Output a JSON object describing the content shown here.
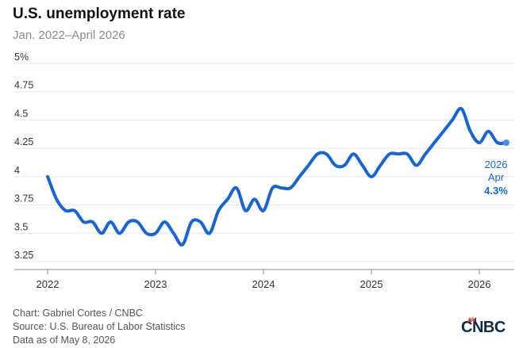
{
  "header": {
    "title": "U.S. unemployment rate",
    "subtitle": "Jan. 2022–April 2026"
  },
  "footer": {
    "credit": "Chart: Gabriel Cortes / CNBC",
    "source": "Source: U.S. Bureau of Labor Statistics",
    "asof": "Data as of May 8, 2026"
  },
  "logo": {
    "text": "CNBC",
    "icon": "cnbc-peacock-logo"
  },
  "colors": {
    "line": "#1565d8",
    "grid": "#e6e6e6",
    "axis": "#888888",
    "label_accent": "#1565d8"
  },
  "chart_data": {
    "type": "line",
    "title": "U.S. unemployment rate",
    "subtitle": "Jan. 2022–April 2026",
    "xlabel": "",
    "ylabel": "",
    "ylim": [
      3.25,
      5
    ],
    "y_ticks": [
      3.25,
      3.5,
      3.75,
      4,
      4.25,
      4.5,
      4.75,
      5
    ],
    "y_tick_labels": [
      "3.25",
      "3.5",
      "3.75",
      "4",
      "4.25",
      "4.5",
      "4.75",
      "5%"
    ],
    "x_tick_labels": [
      "2022",
      "2023",
      "2024",
      "2025",
      "2026"
    ],
    "grid": true,
    "series": [
      {
        "values": [
          {
            "x": "2022-01",
            "y": 4.0
          },
          {
            "x": "2022-02",
            "y": 3.8
          },
          {
            "x": "2022-03",
            "y": 3.7
          },
          {
            "x": "2022-04",
            "y": 3.7
          },
          {
            "x": "2022-05",
            "y": 3.6
          },
          {
            "x": "2022-06",
            "y": 3.6
          },
          {
            "x": "2022-07",
            "y": 3.5
          },
          {
            "x": "2022-08",
            "y": 3.6
          },
          {
            "x": "2022-09",
            "y": 3.5
          },
          {
            "x": "2022-10",
            "y": 3.6
          },
          {
            "x": "2022-11",
            "y": 3.6
          },
          {
            "x": "2022-12",
            "y": 3.5
          },
          {
            "x": "2023-01",
            "y": 3.5
          },
          {
            "x": "2023-02",
            "y": 3.6
          },
          {
            "x": "2023-03",
            "y": 3.5
          },
          {
            "x": "2023-04",
            "y": 3.4
          },
          {
            "x": "2023-05",
            "y": 3.6
          },
          {
            "x": "2023-06",
            "y": 3.6
          },
          {
            "x": "2023-07",
            "y": 3.5
          },
          {
            "x": "2023-08",
            "y": 3.7
          },
          {
            "x": "2023-09",
            "y": 3.8
          },
          {
            "x": "2023-10",
            "y": 3.9
          },
          {
            "x": "2023-11",
            "y": 3.7
          },
          {
            "x": "2023-12",
            "y": 3.8
          },
          {
            "x": "2024-01",
            "y": 3.7
          },
          {
            "x": "2024-02",
            "y": 3.9
          },
          {
            "x": "2024-03",
            "y": 3.9
          },
          {
            "x": "2024-04",
            "y": 3.9
          },
          {
            "x": "2024-05",
            "y": 4.0
          },
          {
            "x": "2024-06",
            "y": 4.1
          },
          {
            "x": "2024-07",
            "y": 4.2
          },
          {
            "x": "2024-08",
            "y": 4.2
          },
          {
            "x": "2024-09",
            "y": 4.1
          },
          {
            "x": "2024-10",
            "y": 4.1
          },
          {
            "x": "2024-11",
            "y": 4.2
          },
          {
            "x": "2024-12",
            "y": 4.1
          },
          {
            "x": "2025-01",
            "y": 4.0
          },
          {
            "x": "2025-02",
            "y": 4.1
          },
          {
            "x": "2025-03",
            "y": 4.2
          },
          {
            "x": "2025-04",
            "y": 4.2
          },
          {
            "x": "2025-05",
            "y": 4.2
          },
          {
            "x": "2025-06",
            "y": 4.1
          },
          {
            "x": "2025-07",
            "y": 4.2
          },
          {
            "x": "2025-08",
            "y": 4.3
          },
          {
            "x": "2025-09",
            "y": 4.4
          },
          {
            "x": "2025-10",
            "y": 4.5
          },
          {
            "x": "2025-11",
            "y": 4.6
          },
          {
            "x": "2025-12",
            "y": 4.4
          },
          {
            "x": "2026-01",
            "y": 4.3
          },
          {
            "x": "2026-02",
            "y": 4.4
          },
          {
            "x": "2026-03",
            "y": 4.3
          },
          {
            "x": "2026-04",
            "y": 4.3
          }
        ]
      }
    ],
    "annotation": {
      "year": "2026",
      "month": "Apr",
      "value": "4.3%"
    }
  }
}
